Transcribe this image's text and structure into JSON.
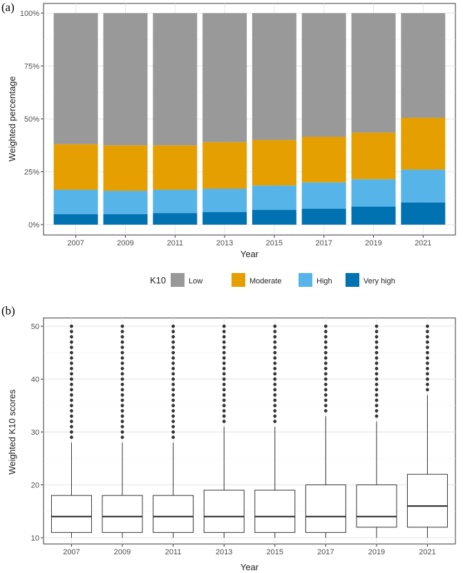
{
  "chart_data": [
    {
      "panel": "(a)",
      "type": "bar",
      "stacked": true,
      "xlabel": "Year",
      "ylabel": "Weighted percentage",
      "categories": [
        "2007",
        "2009",
        "2011",
        "2013",
        "2015",
        "2017",
        "2019",
        "2021"
      ],
      "ylim": [
        0,
        100
      ],
      "yticks": [
        "0%",
        "25%",
        "50%",
        "75%",
        "100%"
      ],
      "grid": true,
      "legend_position": "bottom",
      "legend_title": "K10",
      "series": [
        {
          "name": "Very high",
          "color": "#0072B2",
          "values": [
            5,
            5,
            5.5,
            6,
            7,
            7.5,
            8.5,
            10.5
          ]
        },
        {
          "name": "High",
          "color": "#56B4E9",
          "values": [
            11.5,
            11,
            11,
            11,
            11.5,
            12.5,
            13,
            15.5
          ]
        },
        {
          "name": "Moderate",
          "color": "#E69F00",
          "values": [
            21.5,
            21.5,
            21,
            22,
            21.5,
            21.5,
            22,
            24.5
          ]
        },
        {
          "name": "Low",
          "color": "#999999",
          "values": [
            62,
            62.5,
            62.5,
            61,
            60,
            58.5,
            56.5,
            49.5
          ]
        }
      ],
      "legend_order": [
        "Low",
        "Moderate",
        "High",
        "Very high"
      ]
    },
    {
      "panel": "(b)",
      "type": "boxplot",
      "xlabel": "Year",
      "ylabel": "Weighted K10 scores",
      "categories": [
        "2007",
        "2009",
        "2011",
        "2013",
        "2015",
        "2017",
        "2019",
        "2021"
      ],
      "ylim": [
        10,
        50
      ],
      "yticks": [
        "10",
        "20",
        "30",
        "40",
        "50"
      ],
      "grid": true,
      "boxes": [
        {
          "min": 10,
          "q1": 11,
          "median": 14,
          "q3": 18,
          "whisker_high": 28,
          "outliers_from": 29,
          "outliers_to": 50
        },
        {
          "min": 10,
          "q1": 11,
          "median": 14,
          "q3": 18,
          "whisker_high": 28,
          "outliers_from": 29,
          "outliers_to": 50
        },
        {
          "min": 10,
          "q1": 11,
          "median": 14,
          "q3": 18,
          "whisker_high": 28,
          "outliers_from": 29,
          "outliers_to": 50
        },
        {
          "min": 10,
          "q1": 11,
          "median": 14,
          "q3": 19,
          "whisker_high": 31,
          "outliers_from": 32,
          "outliers_to": 50
        },
        {
          "min": 10,
          "q1": 11,
          "median": 14,
          "q3": 19,
          "whisker_high": 31,
          "outliers_from": 32,
          "outliers_to": 50
        },
        {
          "min": 10,
          "q1": 11,
          "median": 14,
          "q3": 20,
          "whisker_high": 33,
          "outliers_from": 34,
          "outliers_to": 50
        },
        {
          "min": 10,
          "q1": 12,
          "median": 14,
          "q3": 20,
          "whisker_high": 32,
          "outliers_from": 33,
          "outliers_to": 50
        },
        {
          "min": 10,
          "q1": 12,
          "median": 16,
          "q3": 22,
          "whisker_high": 37,
          "outliers_from": 38,
          "outliers_to": 50
        }
      ]
    }
  ]
}
